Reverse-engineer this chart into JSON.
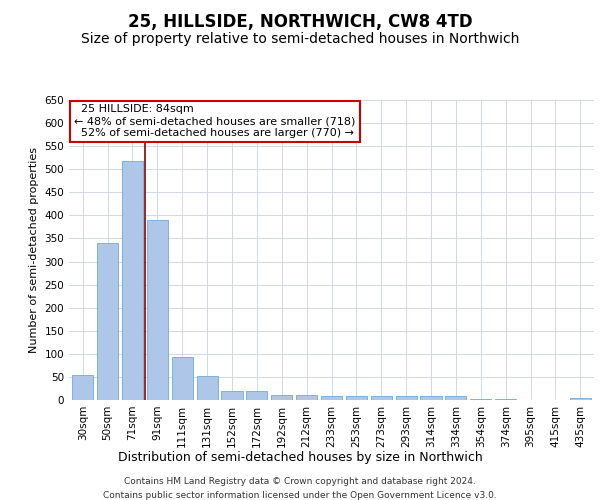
{
  "title": "25, HILLSIDE, NORTHWICH, CW8 4TD",
  "subtitle": "Size of property relative to semi-detached houses in Northwich",
  "xlabel": "Distribution of semi-detached houses by size in Northwich",
  "ylabel": "Number of semi-detached properties",
  "categories": [
    "30sqm",
    "50sqm",
    "71sqm",
    "91sqm",
    "111sqm",
    "131sqm",
    "152sqm",
    "172sqm",
    "192sqm",
    "212sqm",
    "233sqm",
    "253sqm",
    "273sqm",
    "293sqm",
    "314sqm",
    "334sqm",
    "354sqm",
    "374sqm",
    "395sqm",
    "415sqm",
    "435sqm"
  ],
  "values": [
    55,
    340,
    518,
    390,
    93,
    52,
    20,
    20,
    11,
    10,
    8,
    8,
    9,
    9,
    8,
    8,
    2,
    2,
    0,
    0,
    5
  ],
  "bar_color": "#aec6e8",
  "bar_edge_color": "#5a9fd4",
  "ylim": [
    0,
    650
  ],
  "yticks": [
    0,
    50,
    100,
    150,
    200,
    250,
    300,
    350,
    400,
    450,
    500,
    550,
    600,
    650
  ],
  "property_label": "25 HILLSIDE: 84sqm",
  "pct_smaller": 48,
  "count_smaller": 718,
  "pct_larger": 52,
  "count_larger": 770,
  "vline_color": "#8b0000",
  "background_color": "#ffffff",
  "grid_color": "#d0d8e8",
  "footer_line1": "Contains HM Land Registry data © Crown copyright and database right 2024.",
  "footer_line2": "Contains public sector information licensed under the Open Government Licence v3.0.",
  "title_fontsize": 12,
  "subtitle_fontsize": 10,
  "xlabel_fontsize": 9,
  "ylabel_fontsize": 8,
  "tick_fontsize": 7.5,
  "footer_fontsize": 6.5,
  "annot_fontsize": 8
}
